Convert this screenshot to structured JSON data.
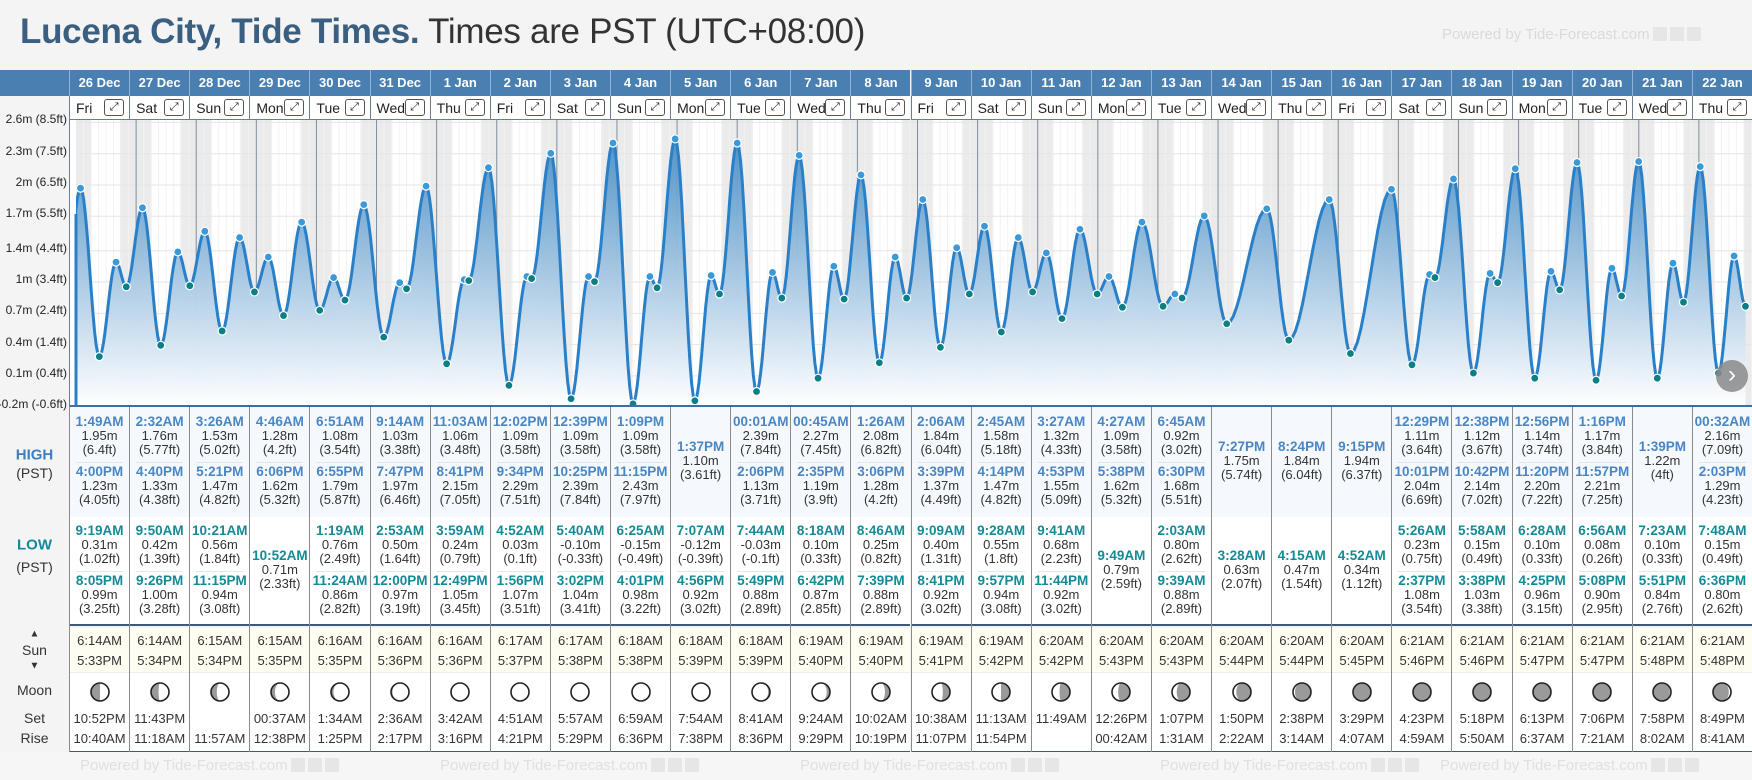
{
  "title": {
    "place": "Lucena City, Tide Times.",
    "subtitle": "Times are PST (UTC+08:00)"
  },
  "watermark": "Powered by Tide-Forecast.com",
  "labels": {
    "high": "HIGH",
    "low": "LOW",
    "tz": "(PST)",
    "sun": "Sun",
    "sun_up": "▲",
    "sun_down": "▼",
    "moon": "Moon",
    "set": "Set",
    "rise": "Rise",
    "expand": "⤢",
    "next": "›"
  },
  "y_axis": [
    "2.6m (8.5ft)",
    "2.3m (7.5ft)",
    "2m (6.5ft)",
    "1.7m (5.5ft)",
    "1.4m (4.4ft)",
    "1m (3.4ft)",
    "0.7m (2.4ft)",
    "0.4m (1.4ft)",
    "0.1m (0.4ft)",
    "-0.2m (-0.6ft)"
  ],
  "y_axis_ft": [
    8.5,
    7.5,
    6.5,
    5.5,
    4.4,
    3.4,
    2.4,
    1.4,
    0.4,
    -0.6
  ],
  "colors": {
    "header": "#4a7fb2",
    "high": "#4a86c4",
    "low": "#148a96",
    "curve": "#2a80c8",
    "fill_top": "#4b8fc6",
    "dot_high": "#3a9ad9",
    "dot_low": "#0b7f86"
  },
  "days": [
    {
      "date": "26 Dec",
      "dow": "Fri",
      "high": [
        {
          "time": "1:49AM",
          "m": "1.95m",
          "ft": "(6.4ft)"
        },
        {
          "time": "4:00PM",
          "m": "1.23m",
          "ft": "(4.05ft)"
        }
      ],
      "low": [
        {
          "time": "9:19AM",
          "m": "0.31m",
          "ft": "(1.02ft)"
        },
        {
          "time": "8:05PM",
          "m": "0.99m",
          "ft": "(3.25ft)"
        }
      ],
      "sun": {
        "rise": "6:14AM",
        "set": "5:33PM"
      },
      "moon": {
        "set": "10:52PM",
        "rise": "10:40AM",
        "lit": 0.5,
        "waxing": true
      }
    },
    {
      "date": "27 Dec",
      "dow": "Sat",
      "high": [
        {
          "time": "2:32AM",
          "m": "1.76m",
          "ft": "(5.77ft)"
        },
        {
          "time": "4:40PM",
          "m": "1.33m",
          "ft": "(4.38ft)"
        }
      ],
      "low": [
        {
          "time": "9:50AM",
          "m": "0.42m",
          "ft": "(1.39ft)"
        },
        {
          "time": "9:26PM",
          "m": "1.00m",
          "ft": "(3.28ft)"
        }
      ],
      "sun": {
        "rise": "6:14AM",
        "set": "5:34PM"
      },
      "moon": {
        "set": "11:43PM",
        "rise": "11:18AM",
        "lit": 0.58,
        "waxing": true
      }
    },
    {
      "date": "28 Dec",
      "dow": "Sun",
      "high": [
        {
          "time": "3:26AM",
          "m": "1.53m",
          "ft": "(5.02ft)"
        },
        {
          "time": "5:21PM",
          "m": "1.47m",
          "ft": "(4.82ft)"
        }
      ],
      "low": [
        {
          "time": "10:21AM",
          "m": "0.56m",
          "ft": "(1.84ft)"
        },
        {
          "time": "11:15PM",
          "m": "0.94m",
          "ft": "(3.08ft)"
        }
      ],
      "sun": {
        "rise": "6:15AM",
        "set": "5:34PM"
      },
      "moon": {
        "set": "",
        "rise": "11:57AM",
        "lit": 0.68,
        "waxing": true
      }
    },
    {
      "date": "29 Dec",
      "dow": "Mon",
      "high": [
        {
          "time": "4:46AM",
          "m": "1.28m",
          "ft": "(4.2ft)"
        },
        {
          "time": "6:06PM",
          "m": "1.62m",
          "ft": "(5.32ft)"
        }
      ],
      "low": [
        {
          "time": "10:52AM",
          "m": "0.71m",
          "ft": "(2.33ft)"
        }
      ],
      "sun": {
        "rise": "6:15AM",
        "set": "5:35PM"
      },
      "moon": {
        "set": "00:37AM",
        "rise": "12:38PM",
        "lit": 0.78,
        "waxing": true
      }
    },
    {
      "date": "30 Dec",
      "dow": "Tue",
      "high": [
        {
          "time": "6:51AM",
          "m": "1.08m",
          "ft": "(3.54ft)"
        },
        {
          "time": "6:55PM",
          "m": "1.79m",
          "ft": "(5.87ft)"
        }
      ],
      "low": [
        {
          "time": "1:19AM",
          "m": "0.76m",
          "ft": "(2.49ft)"
        },
        {
          "time": "11:24AM",
          "m": "0.86m",
          "ft": "(2.82ft)"
        }
      ],
      "sun": {
        "rise": "6:16AM",
        "set": "5:35PM"
      },
      "moon": {
        "set": "1:34AM",
        "rise": "1:25PM",
        "lit": 0.86,
        "waxing": true
      }
    },
    {
      "date": "31 Dec",
      "dow": "Wed",
      "high": [
        {
          "time": "9:14AM",
          "m": "1.03m",
          "ft": "(3.38ft)"
        },
        {
          "time": "7:47PM",
          "m": "1.97m",
          "ft": "(6.46ft)"
        }
      ],
      "low": [
        {
          "time": "2:53AM",
          "m": "0.50m",
          "ft": "(1.64ft)"
        },
        {
          "time": "12:00PM",
          "m": "0.97m",
          "ft": "(3.19ft)"
        }
      ],
      "sun": {
        "rise": "6:16AM",
        "set": "5:36PM"
      },
      "moon": {
        "set": "2:36AM",
        "rise": "2:17PM",
        "lit": 0.92,
        "waxing": true
      }
    },
    {
      "date": "1 Jan",
      "dow": "Thu",
      "high": [
        {
          "time": "11:03AM",
          "m": "1.06m",
          "ft": "(3.48ft)"
        },
        {
          "time": "8:41PM",
          "m": "2.15m",
          "ft": "(7.05ft)"
        }
      ],
      "low": [
        {
          "time": "3:59AM",
          "m": "0.24m",
          "ft": "(0.79ft)"
        },
        {
          "time": "12:49PM",
          "m": "1.05m",
          "ft": "(3.45ft)"
        }
      ],
      "sun": {
        "rise": "6:16AM",
        "set": "5:36PM"
      },
      "moon": {
        "set": "3:42AM",
        "rise": "3:16PM",
        "lit": 0.96,
        "waxing": true
      }
    },
    {
      "date": "2 Jan",
      "dow": "Fri",
      "high": [
        {
          "time": "12:02PM",
          "m": "1.09m",
          "ft": "(3.58ft)"
        },
        {
          "time": "9:34PM",
          "m": "2.29m",
          "ft": "(7.51ft)"
        }
      ],
      "low": [
        {
          "time": "4:52AM",
          "m": "0.03m",
          "ft": "(0.1ft)"
        },
        {
          "time": "1:56PM",
          "m": "1.07m",
          "ft": "(3.51ft)"
        }
      ],
      "sun": {
        "rise": "6:17AM",
        "set": "5:37PM"
      },
      "moon": {
        "set": "4:51AM",
        "rise": "4:21PM",
        "lit": 0.99,
        "waxing": true
      }
    },
    {
      "date": "3 Jan",
      "dow": "Sat",
      "high": [
        {
          "time": "12:39PM",
          "m": "1.09m",
          "ft": "(3.58ft)"
        },
        {
          "time": "10:25PM",
          "m": "2.39m",
          "ft": "(7.84ft)"
        }
      ],
      "low": [
        {
          "time": "5:40AM",
          "m": "-0.10m",
          "ft": "(-0.33ft)"
        },
        {
          "time": "3:02PM",
          "m": "1.04m",
          "ft": "(3.41ft)"
        }
      ],
      "sun": {
        "rise": "6:17AM",
        "set": "5:38PM"
      },
      "moon": {
        "set": "5:57AM",
        "rise": "5:29PM",
        "lit": 1,
        "waxing": true
      }
    },
    {
      "date": "4 Jan",
      "dow": "Sun",
      "high": [
        {
          "time": "1:09PM",
          "m": "1.09m",
          "ft": "(3.58ft)"
        },
        {
          "time": "11:15PM",
          "m": "2.43m",
          "ft": "(7.97ft)"
        }
      ],
      "low": [
        {
          "time": "6:25AM",
          "m": "-0.15m",
          "ft": "(-0.49ft)"
        },
        {
          "time": "4:01PM",
          "m": "0.98m",
          "ft": "(3.22ft)"
        }
      ],
      "sun": {
        "rise": "6:18AM",
        "set": "5:38PM"
      },
      "moon": {
        "set": "6:59AM",
        "rise": "6:36PM",
        "lit": 1,
        "waxing": false
      }
    },
    {
      "date": "5 Jan",
      "dow": "Mon",
      "high": [
        {
          "time": "1:37PM",
          "m": "1.10m",
          "ft": "(3.61ft)"
        }
      ],
      "low": [
        {
          "time": "7:07AM",
          "m": "-0.12m",
          "ft": "(-0.39ft)"
        },
        {
          "time": "4:56PM",
          "m": "0.92m",
          "ft": "(3.02ft)"
        }
      ],
      "sun": {
        "rise": "6:18AM",
        "set": "5:39PM"
      },
      "moon": {
        "set": "7:54AM",
        "rise": "7:38PM",
        "lit": 0.96,
        "waxing": false
      }
    },
    {
      "date": "6 Jan",
      "dow": "Tue",
      "high": [
        {
          "time": "00:01AM",
          "m": "2.39m",
          "ft": "(7.84ft)"
        },
        {
          "time": "2:06PM",
          "m": "1.13m",
          "ft": "(3.71ft)"
        }
      ],
      "low": [
        {
          "time": "7:44AM",
          "m": "-0.03m",
          "ft": "(-0.1ft)"
        },
        {
          "time": "5:49PM",
          "m": "0.88m",
          "ft": "(2.89ft)"
        }
      ],
      "sun": {
        "rise": "6:18AM",
        "set": "5:39PM"
      },
      "moon": {
        "set": "8:41AM",
        "rise": "8:36PM",
        "lit": 0.9,
        "waxing": false
      }
    },
    {
      "date": "7 Jan",
      "dow": "Wed",
      "high": [
        {
          "time": "00:45AM",
          "m": "2.27m",
          "ft": "(7.45ft)"
        },
        {
          "time": "2:35PM",
          "m": "1.19m",
          "ft": "(3.9ft)"
        }
      ],
      "low": [
        {
          "time": "8:18AM",
          "m": "0.10m",
          "ft": "(0.33ft)"
        },
        {
          "time": "6:42PM",
          "m": "0.87m",
          "ft": "(2.85ft)"
        }
      ],
      "sun": {
        "rise": "6:19AM",
        "set": "5:40PM"
      },
      "moon": {
        "set": "9:24AM",
        "rise": "9:29PM",
        "lit": 0.82,
        "waxing": false
      }
    },
    {
      "date": "8 Jan",
      "dow": "Thu",
      "high": [
        {
          "time": "1:26AM",
          "m": "2.08m",
          "ft": "(6.82ft)"
        },
        {
          "time": "3:06PM",
          "m": "1.28m",
          "ft": "(4.2ft)"
        }
      ],
      "low": [
        {
          "time": "8:46AM",
          "m": "0.25m",
          "ft": "(0.82ft)"
        },
        {
          "time": "7:39PM",
          "m": "0.88m",
          "ft": "(2.89ft)"
        }
      ],
      "sun": {
        "rise": "6:19AM",
        "set": "5:40PM"
      },
      "moon": {
        "set": "10:02AM",
        "rise": "10:19PM",
        "lit": 0.72,
        "waxing": false
      }
    },
    {
      "date": "9 Jan",
      "dow": "Fri",
      "high": [
        {
          "time": "2:06AM",
          "m": "1.84m",
          "ft": "(6.04ft)"
        },
        {
          "time": "3:39PM",
          "m": "1.37m",
          "ft": "(4.49ft)"
        }
      ],
      "low": [
        {
          "time": "9:09AM",
          "m": "0.40m",
          "ft": "(1.31ft)"
        },
        {
          "time": "8:41PM",
          "m": "0.92m",
          "ft": "(3.02ft)"
        }
      ],
      "sun": {
        "rise": "6:19AM",
        "set": "5:41PM"
      },
      "moon": {
        "set": "10:38AM",
        "rise": "11:07PM",
        "lit": 0.6,
        "waxing": false
      }
    },
    {
      "date": "10 Jan",
      "dow": "Sat",
      "high": [
        {
          "time": "2:45AM",
          "m": "1.58m",
          "ft": "(5.18ft)"
        },
        {
          "time": "4:14PM",
          "m": "1.47m",
          "ft": "(4.82ft)"
        }
      ],
      "low": [
        {
          "time": "9:28AM",
          "m": "0.55m",
          "ft": "(1.8ft)"
        },
        {
          "time": "9:57PM",
          "m": "0.94m",
          "ft": "(3.08ft)"
        }
      ],
      "sun": {
        "rise": "6:19AM",
        "set": "5:42PM"
      },
      "moon": {
        "set": "11:13AM",
        "rise": "11:54PM",
        "lit": 0.5,
        "waxing": false
      }
    },
    {
      "date": "11 Jan",
      "dow": "Sun",
      "high": [
        {
          "time": "3:27AM",
          "m": "1.32m",
          "ft": "(4.33ft)"
        },
        {
          "time": "4:53PM",
          "m": "1.55m",
          "ft": "(5.09ft)"
        }
      ],
      "low": [
        {
          "time": "9:41AM",
          "m": "0.68m",
          "ft": "(2.23ft)"
        },
        {
          "time": "11:44PM",
          "m": "0.92m",
          "ft": "(3.02ft)"
        }
      ],
      "sun": {
        "rise": "6:20AM",
        "set": "5:42PM"
      },
      "moon": {
        "set": "11:49AM",
        "rise": "",
        "lit": 0.42,
        "waxing": false
      }
    },
    {
      "date": "12 Jan",
      "dow": "Mon",
      "high": [
        {
          "time": "4:27AM",
          "m": "1.09m",
          "ft": "(3.58ft)"
        },
        {
          "time": "5:38PM",
          "m": "1.62m",
          "ft": "(5.32ft)"
        }
      ],
      "low": [
        {
          "time": "9:49AM",
          "m": "0.79m",
          "ft": "(2.59ft)"
        }
      ],
      "sun": {
        "rise": "6:20AM",
        "set": "5:43PM"
      },
      "moon": {
        "set": "12:26PM",
        "rise": "00:42AM",
        "lit": 0.34,
        "waxing": false
      }
    },
    {
      "date": "13 Jan",
      "dow": "Tue",
      "high": [
        {
          "time": "6:45AM",
          "m": "0.92m",
          "ft": "(3.02ft)"
        },
        {
          "time": "6:30PM",
          "m": "1.68m",
          "ft": "(5.51ft)"
        }
      ],
      "low": [
        {
          "time": "2:03AM",
          "m": "0.80m",
          "ft": "(2.62ft)"
        },
        {
          "time": "9:39AM",
          "m": "0.88m",
          "ft": "(2.89ft)"
        }
      ],
      "sun": {
        "rise": "6:20AM",
        "set": "5:43PM"
      },
      "moon": {
        "set": "1:07PM",
        "rise": "1:31AM",
        "lit": 0.26,
        "waxing": false
      }
    },
    {
      "date": "14 Jan",
      "dow": "Wed",
      "high": [
        {
          "time": "7:27PM",
          "m": "1.75m",
          "ft": "(5.74ft)"
        }
      ],
      "low": [
        {
          "time": "3:28AM",
          "m": "0.63m",
          "ft": "(2.07ft)"
        }
      ],
      "sun": {
        "rise": "6:20AM",
        "set": "5:44PM"
      },
      "moon": {
        "set": "1:50PM",
        "rise": "2:22AM",
        "lit": 0.18,
        "waxing": false
      }
    },
    {
      "date": "15 Jan",
      "dow": "Thu",
      "high": [
        {
          "time": "8:24PM",
          "m": "1.84m",
          "ft": "(6.04ft)"
        }
      ],
      "low": [
        {
          "time": "4:15AM",
          "m": "0.47m",
          "ft": "(1.54ft)"
        }
      ],
      "sun": {
        "rise": "6:20AM",
        "set": "5:44PM"
      },
      "moon": {
        "set": "2:38PM",
        "rise": "3:14AM",
        "lit": 0.11,
        "waxing": false
      }
    },
    {
      "date": "16 Jan",
      "dow": "Fri",
      "high": [
        {
          "time": "9:15PM",
          "m": "1.94m",
          "ft": "(6.37ft)"
        }
      ],
      "low": [
        {
          "time": "4:52AM",
          "m": "0.34m",
          "ft": "(1.12ft)"
        }
      ],
      "sun": {
        "rise": "6:20AM",
        "set": "5:45PM"
      },
      "moon": {
        "set": "3:29PM",
        "rise": "4:07AM",
        "lit": 0.05,
        "waxing": false
      }
    },
    {
      "date": "17 Jan",
      "dow": "Sat",
      "high": [
        {
          "time": "12:29PM",
          "m": "1.11m",
          "ft": "(3.64ft)"
        },
        {
          "time": "10:01PM",
          "m": "2.04m",
          "ft": "(6.69ft)"
        }
      ],
      "low": [
        {
          "time": "5:26AM",
          "m": "0.23m",
          "ft": "(0.75ft)"
        },
        {
          "time": "2:37PM",
          "m": "1.08m",
          "ft": "(3.54ft)"
        }
      ],
      "sun": {
        "rise": "6:21AM",
        "set": "5:46PM"
      },
      "moon": {
        "set": "4:23PM",
        "rise": "4:59AM",
        "lit": 0.01,
        "waxing": false
      }
    },
    {
      "date": "18 Jan",
      "dow": "Sun",
      "high": [
        {
          "time": "12:38PM",
          "m": "1.12m",
          "ft": "(3.67ft)"
        },
        {
          "time": "10:42PM",
          "m": "2.14m",
          "ft": "(7.02ft)"
        }
      ],
      "low": [
        {
          "time": "5:58AM",
          "m": "0.15m",
          "ft": "(0.49ft)"
        },
        {
          "time": "3:38PM",
          "m": "1.03m",
          "ft": "(3.38ft)"
        }
      ],
      "sun": {
        "rise": "6:21AM",
        "set": "5:46PM"
      },
      "moon": {
        "set": "5:18PM",
        "rise": "5:50AM",
        "lit": 0,
        "waxing": true
      }
    },
    {
      "date": "19 Jan",
      "dow": "Mon",
      "high": [
        {
          "time": "12:56PM",
          "m": "1.14m",
          "ft": "(3.74ft)"
        },
        {
          "time": "11:20PM",
          "m": "2.20m",
          "ft": "(7.22ft)"
        }
      ],
      "low": [
        {
          "time": "6:28AM",
          "m": "0.10m",
          "ft": "(0.33ft)"
        },
        {
          "time": "4:25PM",
          "m": "0.96m",
          "ft": "(3.15ft)"
        }
      ],
      "sun": {
        "rise": "6:21AM",
        "set": "5:47PM"
      },
      "moon": {
        "set": "6:13PM",
        "rise": "6:37AM",
        "lit": 0,
        "waxing": true
      }
    },
    {
      "date": "20 Jan",
      "dow": "Tue",
      "high": [
        {
          "time": "1:16PM",
          "m": "1.17m",
          "ft": "(3.84ft)"
        },
        {
          "time": "11:57PM",
          "m": "2.21m",
          "ft": "(7.25ft)"
        }
      ],
      "low": [
        {
          "time": "6:56AM",
          "m": "0.08m",
          "ft": "(0.26ft)"
        },
        {
          "time": "5:08PM",
          "m": "0.90m",
          "ft": "(2.95ft)"
        }
      ],
      "sun": {
        "rise": "6:21AM",
        "set": "5:47PM"
      },
      "moon": {
        "set": "7:06PM",
        "rise": "7:21AM",
        "lit": 0.02,
        "waxing": true
      }
    },
    {
      "date": "21 Jan",
      "dow": "Wed",
      "high": [
        {
          "time": "1:39PM",
          "m": "1.22m",
          "ft": "(4ft)"
        }
      ],
      "low": [
        {
          "time": "7:23AM",
          "m": "0.10m",
          "ft": "(0.33ft)"
        },
        {
          "time": "5:51PM",
          "m": "0.84m",
          "ft": "(2.76ft)"
        }
      ],
      "sun": {
        "rise": "6:21AM",
        "set": "5:48PM"
      },
      "moon": {
        "set": "7:58PM",
        "rise": "8:02AM",
        "lit": 0.06,
        "waxing": true
      }
    },
    {
      "date": "22 Jan",
      "dow": "Thu",
      "high": [
        {
          "time": "00:32AM",
          "m": "2.16m",
          "ft": "(7.09ft)"
        },
        {
          "time": "2:03PM",
          "m": "1.29m",
          "ft": "(4.23ft)"
        }
      ],
      "low": [
        {
          "time": "7:48AM",
          "m": "0.15m",
          "ft": "(0.49ft)"
        },
        {
          "time": "6:36PM",
          "m": "0.80m",
          "ft": "(2.62ft)"
        }
      ],
      "sun": {
        "rise": "6:21AM",
        "set": "5:48PM"
      },
      "moon": {
        "set": "8:49PM",
        "rise": "8:41AM",
        "lit": 0.12,
        "waxing": true
      }
    }
  ]
}
